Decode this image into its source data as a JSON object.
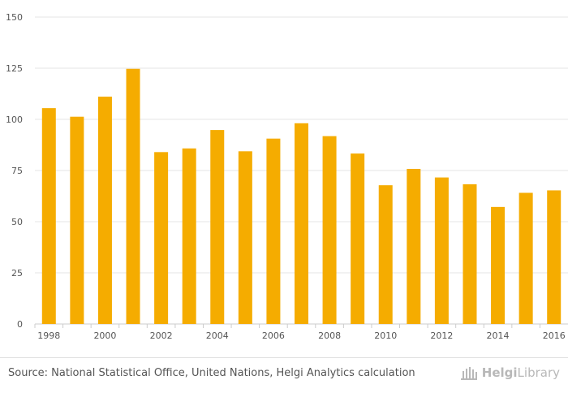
{
  "chart_data": {
    "type": "bar",
    "title": "",
    "xlabel": "",
    "ylabel": "",
    "categories": [
      "1998",
      "1999",
      "2000",
      "2001",
      "2002",
      "2003",
      "2004",
      "2005",
      "2006",
      "2007",
      "2008",
      "2009",
      "2010",
      "2011",
      "2012",
      "2013",
      "2014",
      "2015",
      "2016"
    ],
    "x_tick_labels": [
      "1998",
      "",
      "2000",
      "",
      "2002",
      "",
      "2004",
      "",
      "2006",
      "",
      "2008",
      "",
      "2010",
      "",
      "2012",
      "",
      "2014",
      "",
      "2016"
    ],
    "values": [
      105.5,
      101.3,
      111.1,
      124.7,
      84.0,
      85.8,
      94.8,
      84.4,
      90.6,
      98.1,
      91.8,
      83.3,
      67.8,
      75.8,
      71.6,
      68.3,
      57.2,
      64.1,
      65.3
    ],
    "ylim": [
      0,
      150
    ],
    "y_ticks": [
      0,
      25,
      50,
      75,
      100,
      125,
      150
    ],
    "grid": true,
    "legend": "none",
    "bar_color": "#f5ac00"
  },
  "footer": {
    "source": "Source: National Statistical Office, United Nations, Helgi Analytics calculation",
    "logo_bold": "Helgi",
    "logo_light": "Library"
  },
  "colors": {
    "grid": "#e6e6e6",
    "axis": "#cccccc",
    "tick_label": "#555555"
  }
}
